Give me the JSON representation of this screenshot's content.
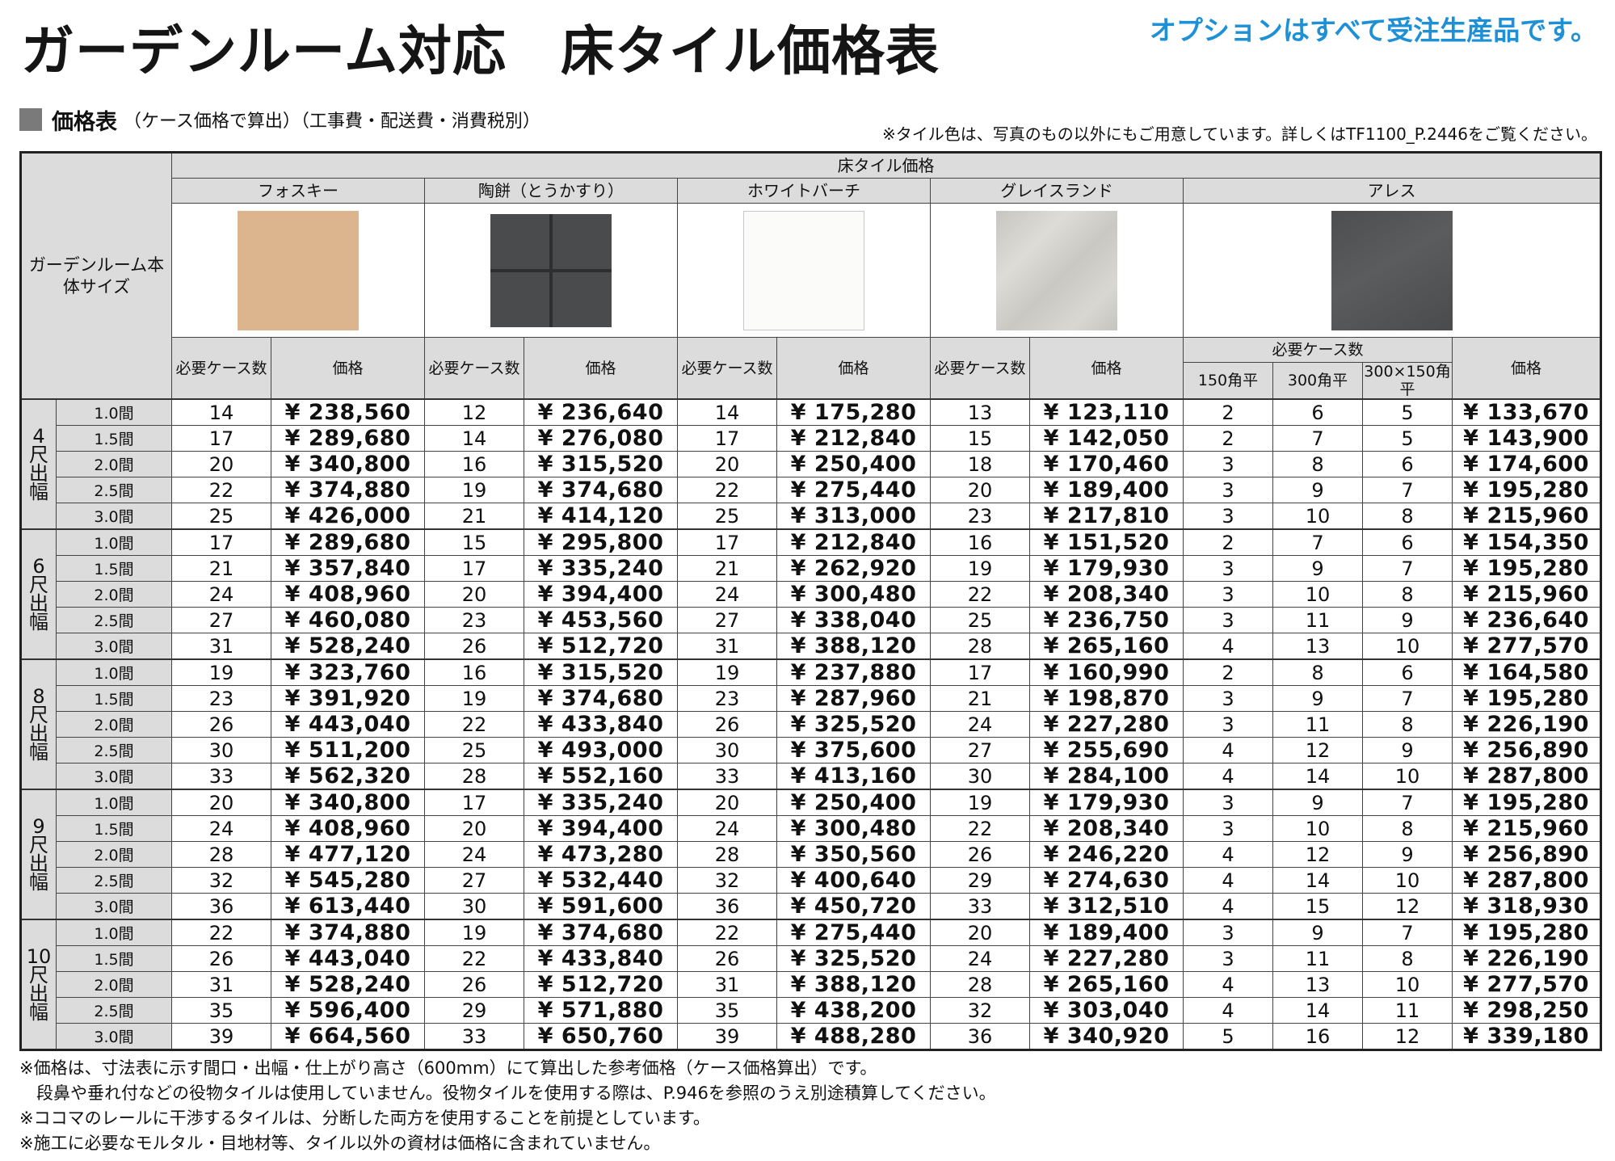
{
  "title": "ガーデンルーム対応　床タイル価格表",
  "top_note": "オプションはすべて受注生産品です。",
  "section": {
    "heading": "価格表",
    "subheading": "（ケース価格で算出）（工事費・配送費・消費税別）",
    "right_note": "※タイル色は、写真のもの以外にもご用意しています。詳しくはTF1100_P.2446をご覧ください。"
  },
  "table": {
    "side_header": "ガーデンルーム本体サイズ",
    "price_header": "床タイル価格",
    "tiles": [
      {
        "name": "フォスキー",
        "swatch_color": "#dcb48d"
      },
      {
        "name": "陶餅（とうかすり）",
        "swatch_color": "#4a4b4d"
      },
      {
        "name": "ホワイトバーチ",
        "swatch_color": "#fbfbf9"
      },
      {
        "name": "グレイスランド",
        "swatch_color": "#cfcec8"
      },
      {
        "name": "アレス",
        "swatch_color": "#505254"
      }
    ],
    "sub_headers": {
      "cases": "必要ケース数",
      "price": "価格",
      "required_cases": "必要ケース数",
      "ares_150": "150角平",
      "ares_300": "300角平",
      "ares_300x150": "300×150角平"
    },
    "currency": "¥",
    "groups": [
      {
        "label": [
          "4",
          "尺",
          "出",
          "幅"
        ],
        "rows": [
          {
            "w": "1.0間",
            "c1": "14",
            "p1": "238,560",
            "c2": "12",
            "p2": "236,640",
            "c3": "14",
            "p3": "175,280",
            "c4": "13",
            "p4": "123,110",
            "a150": "2",
            "a300": "6",
            "a300x150": "5",
            "p5": "133,670"
          },
          {
            "w": "1.5間",
            "c1": "17",
            "p1": "289,680",
            "c2": "14",
            "p2": "276,080",
            "c3": "17",
            "p3": "212,840",
            "c4": "15",
            "p4": "142,050",
            "a150": "2",
            "a300": "7",
            "a300x150": "5",
            "p5": "143,900"
          },
          {
            "w": "2.0間",
            "c1": "20",
            "p1": "340,800",
            "c2": "16",
            "p2": "315,520",
            "c3": "20",
            "p3": "250,400",
            "c4": "18",
            "p4": "170,460",
            "a150": "3",
            "a300": "8",
            "a300x150": "6",
            "p5": "174,600"
          },
          {
            "w": "2.5間",
            "c1": "22",
            "p1": "374,880",
            "c2": "19",
            "p2": "374,680",
            "c3": "22",
            "p3": "275,440",
            "c4": "20",
            "p4": "189,400",
            "a150": "3",
            "a300": "9",
            "a300x150": "7",
            "p5": "195,280"
          },
          {
            "w": "3.0間",
            "c1": "25",
            "p1": "426,000",
            "c2": "21",
            "p2": "414,120",
            "c3": "25",
            "p3": "313,000",
            "c4": "23",
            "p4": "217,810",
            "a150": "3",
            "a300": "10",
            "a300x150": "8",
            "p5": "215,960"
          }
        ]
      },
      {
        "label": [
          "6",
          "尺",
          "出",
          "幅"
        ],
        "rows": [
          {
            "w": "1.0間",
            "c1": "17",
            "p1": "289,680",
            "c2": "15",
            "p2": "295,800",
            "c3": "17",
            "p3": "212,840",
            "c4": "16",
            "p4": "151,520",
            "a150": "2",
            "a300": "7",
            "a300x150": "6",
            "p5": "154,350"
          },
          {
            "w": "1.5間",
            "c1": "21",
            "p1": "357,840",
            "c2": "17",
            "p2": "335,240",
            "c3": "21",
            "p3": "262,920",
            "c4": "19",
            "p4": "179,930",
            "a150": "3",
            "a300": "9",
            "a300x150": "7",
            "p5": "195,280"
          },
          {
            "w": "2.0間",
            "c1": "24",
            "p1": "408,960",
            "c2": "20",
            "p2": "394,400",
            "c3": "24",
            "p3": "300,480",
            "c4": "22",
            "p4": "208,340",
            "a150": "3",
            "a300": "10",
            "a300x150": "8",
            "p5": "215,960"
          },
          {
            "w": "2.5間",
            "c1": "27",
            "p1": "460,080",
            "c2": "23",
            "p2": "453,560",
            "c3": "27",
            "p3": "338,040",
            "c4": "25",
            "p4": "236,750",
            "a150": "3",
            "a300": "11",
            "a300x150": "9",
            "p5": "236,640"
          },
          {
            "w": "3.0間",
            "c1": "31",
            "p1": "528,240",
            "c2": "26",
            "p2": "512,720",
            "c3": "31",
            "p3": "388,120",
            "c4": "28",
            "p4": "265,160",
            "a150": "4",
            "a300": "13",
            "a300x150": "10",
            "p5": "277,570"
          }
        ]
      },
      {
        "label": [
          "8",
          "尺",
          "出",
          "幅"
        ],
        "rows": [
          {
            "w": "1.0間",
            "c1": "19",
            "p1": "323,760",
            "c2": "16",
            "p2": "315,520",
            "c3": "19",
            "p3": "237,880",
            "c4": "17",
            "p4": "160,990",
            "a150": "2",
            "a300": "8",
            "a300x150": "6",
            "p5": "164,580"
          },
          {
            "w": "1.5間",
            "c1": "23",
            "p1": "391,920",
            "c2": "19",
            "p2": "374,680",
            "c3": "23",
            "p3": "287,960",
            "c4": "21",
            "p4": "198,870",
            "a150": "3",
            "a300": "9",
            "a300x150": "7",
            "p5": "195,280"
          },
          {
            "w": "2.0間",
            "c1": "26",
            "p1": "443,040",
            "c2": "22",
            "p2": "433,840",
            "c3": "26",
            "p3": "325,520",
            "c4": "24",
            "p4": "227,280",
            "a150": "3",
            "a300": "11",
            "a300x150": "8",
            "p5": "226,190"
          },
          {
            "w": "2.5間",
            "c1": "30",
            "p1": "511,200",
            "c2": "25",
            "p2": "493,000",
            "c3": "30",
            "p3": "375,600",
            "c4": "27",
            "p4": "255,690",
            "a150": "4",
            "a300": "12",
            "a300x150": "9",
            "p5": "256,890"
          },
          {
            "w": "3.0間",
            "c1": "33",
            "p1": "562,320",
            "c2": "28",
            "p2": "552,160",
            "c3": "33",
            "p3": "413,160",
            "c4": "30",
            "p4": "284,100",
            "a150": "4",
            "a300": "14",
            "a300x150": "10",
            "p5": "287,800"
          }
        ]
      },
      {
        "label": [
          "9",
          "尺",
          "出",
          "幅"
        ],
        "rows": [
          {
            "w": "1.0間",
            "c1": "20",
            "p1": "340,800",
            "c2": "17",
            "p2": "335,240",
            "c3": "20",
            "p3": "250,400",
            "c4": "19",
            "p4": "179,930",
            "a150": "3",
            "a300": "9",
            "a300x150": "7",
            "p5": "195,280"
          },
          {
            "w": "1.5間",
            "c1": "24",
            "p1": "408,960",
            "c2": "20",
            "p2": "394,400",
            "c3": "24",
            "p3": "300,480",
            "c4": "22",
            "p4": "208,340",
            "a150": "3",
            "a300": "10",
            "a300x150": "8",
            "p5": "215,960"
          },
          {
            "w": "2.0間",
            "c1": "28",
            "p1": "477,120",
            "c2": "24",
            "p2": "473,280",
            "c3": "28",
            "p3": "350,560",
            "c4": "26",
            "p4": "246,220",
            "a150": "4",
            "a300": "12",
            "a300x150": "9",
            "p5": "256,890"
          },
          {
            "w": "2.5間",
            "c1": "32",
            "p1": "545,280",
            "c2": "27",
            "p2": "532,440",
            "c3": "32",
            "p3": "400,640",
            "c4": "29",
            "p4": "274,630",
            "a150": "4",
            "a300": "14",
            "a300x150": "10",
            "p5": "287,800"
          },
          {
            "w": "3.0間",
            "c1": "36",
            "p1": "613,440",
            "c2": "30",
            "p2": "591,600",
            "c3": "36",
            "p3": "450,720",
            "c4": "33",
            "p4": "312,510",
            "a150": "4",
            "a300": "15",
            "a300x150": "12",
            "p5": "318,930"
          }
        ]
      },
      {
        "label": [
          "10",
          "尺",
          "出",
          "幅"
        ],
        "rows": [
          {
            "w": "1.0間",
            "c1": "22",
            "p1": "374,880",
            "c2": "19",
            "p2": "374,680",
            "c3": "22",
            "p3": "275,440",
            "c4": "20",
            "p4": "189,400",
            "a150": "3",
            "a300": "9",
            "a300x150": "7",
            "p5": "195,280"
          },
          {
            "w": "1.5間",
            "c1": "26",
            "p1": "443,040",
            "c2": "22",
            "p2": "433,840",
            "c3": "26",
            "p3": "325,520",
            "c4": "24",
            "p4": "227,280",
            "a150": "3",
            "a300": "11",
            "a300x150": "8",
            "p5": "226,190"
          },
          {
            "w": "2.0間",
            "c1": "31",
            "p1": "528,240",
            "c2": "26",
            "p2": "512,720",
            "c3": "31",
            "p3": "388,120",
            "c4": "28",
            "p4": "265,160",
            "a150": "4",
            "a300": "13",
            "a300x150": "10",
            "p5": "277,570"
          },
          {
            "w": "2.5間",
            "c1": "35",
            "p1": "596,400",
            "c2": "29",
            "p2": "571,880",
            "c3": "35",
            "p3": "438,200",
            "c4": "32",
            "p4": "303,040",
            "a150": "4",
            "a300": "14",
            "a300x150": "11",
            "p5": "298,250"
          },
          {
            "w": "3.0間",
            "c1": "39",
            "p1": "664,560",
            "c2": "33",
            "p2": "650,760",
            "c3": "39",
            "p3": "488,280",
            "c4": "36",
            "p4": "340,920",
            "a150": "5",
            "a300": "16",
            "a300x150": "12",
            "p5": "339,180"
          }
        ]
      }
    ]
  },
  "notes": [
    "※価格は、寸法表に示す間口・出幅・仕上がり高さ（600mm）にて算出した参考価格（ケース価格算出）です。",
    "　段鼻や垂れ付などの役物タイルは使用していません。役物タイルを使用する際は、P.946を参照のうえ別途積算してください。",
    "※ココマのレールに干渉するタイルは、分断した両方を使用することを前提としています。",
    "※施工に必要なモルタル・目地材等、タイル以外の資材は価格に含まれていません。"
  ]
}
